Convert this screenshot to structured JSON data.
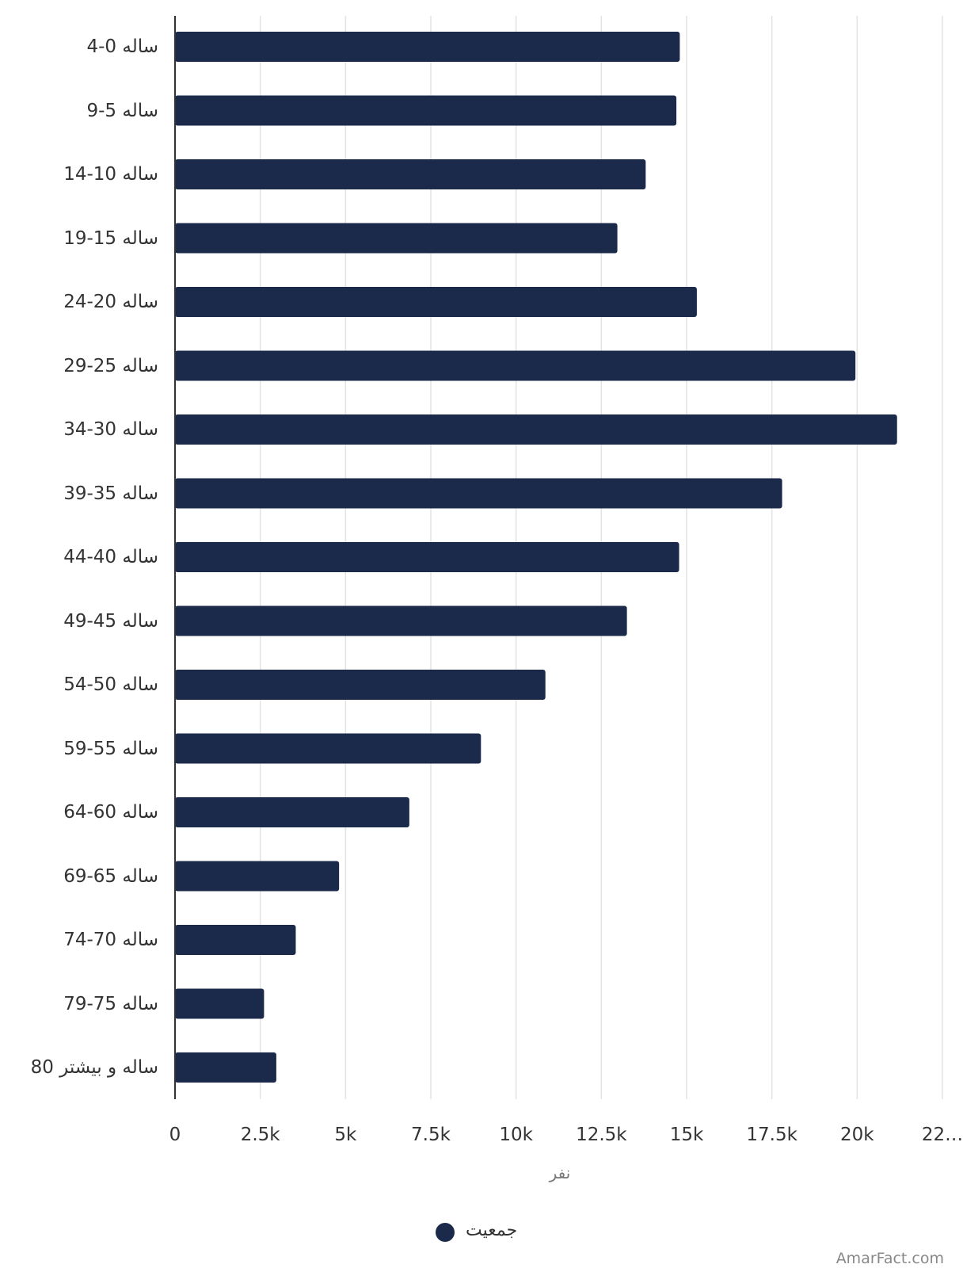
{
  "chart_data": {
    "type": "bar",
    "orientation": "horizontal",
    "categories": [
      "ساله 0-4",
      "ساله 5-9",
      "ساله 10-14",
      "ساله 15-19",
      "ساله 20-24",
      "ساله 25-29",
      "ساله 30-34",
      "ساله 35-39",
      "ساله 40-44",
      "ساله 45-49",
      "ساله 50-54",
      "ساله 55-59",
      "ساله 60-64",
      "ساله 65-69",
      "ساله 70-74",
      "ساله 75-79",
      "ساله و بیشتر 80"
    ],
    "series": [
      {
        "name": "جمعیت",
        "color": "#1b2a4a",
        "values": [
          14800,
          14700,
          13800,
          12970,
          15300,
          19950,
          21170,
          17800,
          14780,
          13250,
          10860,
          8970,
          6870,
          4810,
          3540,
          2610,
          2970
        ]
      }
    ],
    "xlabel": "نفر",
    "xlim": [
      0,
      22500
    ],
    "xticks": [
      0,
      {
        "value": 2500,
        "label": "2.5k"
      },
      {
        "value": 5000,
        "label": "5k"
      },
      {
        "value": 7500,
        "label": "7.5k"
      },
      {
        "value": 10000,
        "label": "10k"
      },
      {
        "value": 12500,
        "label": "12.5k"
      },
      {
        "value": 15000,
        "label": "15k"
      },
      {
        "value": 17500,
        "label": "17.5k"
      },
      {
        "value": 20000,
        "label": "20k"
      },
      {
        "value": 22500,
        "label": "22…"
      }
    ],
    "grid": true,
    "legend": "bottom",
    "watermark": "AmarFact.com"
  }
}
